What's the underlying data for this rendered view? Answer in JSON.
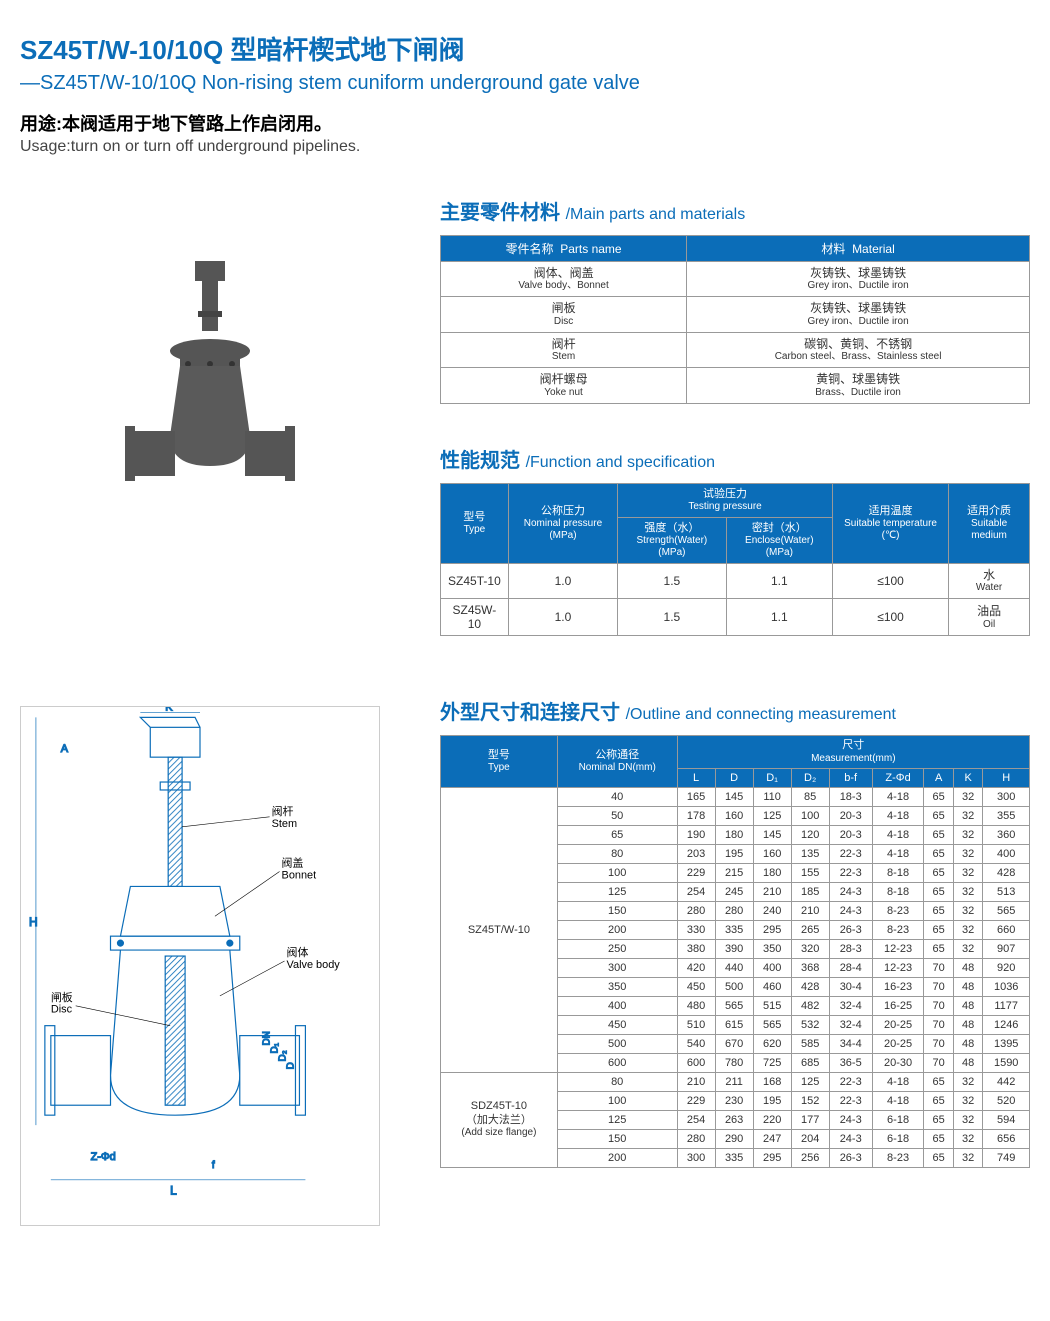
{
  "header": {
    "title_zh": "SZ45T/W-10/10Q 型暗杆楔式地下闸阀",
    "title_en": "—SZ45T/W-10/10Q Non-rising stem cuniform underground gate valve",
    "usage_zh": "用途:本阀适用于地下管路上作启闭用。",
    "usage_en": "Usage:turn on or turn off underground pipelines."
  },
  "colors": {
    "primary": "#0b6db8",
    "header_bg": "#0b6db8",
    "border": "#999999",
    "text": "#333333"
  },
  "parts": {
    "title_zh": "主要零件材料",
    "title_en": "/Main parts and materials",
    "col1_zh": "零件名称",
    "col1_en": "Parts name",
    "col2_zh": "材料",
    "col2_en": "Material",
    "rows": [
      {
        "part_zh": "阀体、阀盖",
        "part_en": "Valve body、Bonnet",
        "mat_zh": "灰铸铁、球墨铸铁",
        "mat_en": "Grey iron、Ductile iron"
      },
      {
        "part_zh": "闸板",
        "part_en": "Disc",
        "mat_zh": "灰铸铁、球墨铸铁",
        "mat_en": "Grey iron、Ductile iron"
      },
      {
        "part_zh": "阀杆",
        "part_en": "Stem",
        "mat_zh": "碳钢、黄铜、不锈钢",
        "mat_en": "Carbon steel、Brass、Stainless steel"
      },
      {
        "part_zh": "阀杆螺母",
        "part_en": "Yoke nut",
        "mat_zh": "黄铜、球墨铸铁",
        "mat_en": "Brass、Ductile iron"
      }
    ]
  },
  "spec": {
    "title_zh": "性能规范",
    "title_en": "/Function and specification",
    "h_type_zh": "型号",
    "h_type_en": "Type",
    "h_nom_zh": "公称压力",
    "h_nom_en": "Nominal pressure (MPa)",
    "h_test_zh": "试验压力",
    "h_test_en": "Testing pressure",
    "h_strength_zh": "强度（水）",
    "h_strength_en": "Strength(Water) (MPa)",
    "h_seal_zh": "密封（水）",
    "h_seal_en": "Enclose(Water) (MPa)",
    "h_temp_zh": "适用温度",
    "h_temp_en": "Suitable temperature (℃)",
    "h_medium_zh": "适用介质",
    "h_medium_en": "Suitable medium",
    "rows": [
      {
        "type": "SZ45T-10",
        "nom": "1.0",
        "strength": "1.5",
        "seal": "1.1",
        "temp": "≤100",
        "medium_zh": "水",
        "medium_en": "Water"
      },
      {
        "type": "SZ45W-10",
        "nom": "1.0",
        "strength": "1.5",
        "seal": "1.1",
        "temp": "≤100",
        "medium_zh": "油品",
        "medium_en": "Oil"
      }
    ]
  },
  "dims": {
    "title_zh": "外型尺寸和连接尺寸",
    "title_en": "/Outline and connecting measurement",
    "h_type_zh": "型号",
    "h_type_en": "Type",
    "h_dn_zh": "公称通径",
    "h_dn_en": "Nominal DN(mm)",
    "h_meas_zh": "尺寸",
    "h_meas_en": "Measurement(mm)",
    "cols": [
      "L",
      "D",
      "D₁",
      "D₂",
      "b-f",
      "Z-Φd",
      "A",
      "K",
      "H"
    ],
    "group1": {
      "type": "SZ45T/W-10",
      "rows": [
        [
          "40",
          "165",
          "145",
          "110",
          "85",
          "18-3",
          "4-18",
          "65",
          "32",
          "300"
        ],
        [
          "50",
          "178",
          "160",
          "125",
          "100",
          "20-3",
          "4-18",
          "65",
          "32",
          "355"
        ],
        [
          "65",
          "190",
          "180",
          "145",
          "120",
          "20-3",
          "4-18",
          "65",
          "32",
          "360"
        ],
        [
          "80",
          "203",
          "195",
          "160",
          "135",
          "22-3",
          "4-18",
          "65",
          "32",
          "400"
        ],
        [
          "100",
          "229",
          "215",
          "180",
          "155",
          "22-3",
          "8-18",
          "65",
          "32",
          "428"
        ],
        [
          "125",
          "254",
          "245",
          "210",
          "185",
          "24-3",
          "8-18",
          "65",
          "32",
          "513"
        ],
        [
          "150",
          "280",
          "280",
          "240",
          "210",
          "24-3",
          "8-23",
          "65",
          "32",
          "565"
        ],
        [
          "200",
          "330",
          "335",
          "295",
          "265",
          "26-3",
          "8-23",
          "65",
          "32",
          "660"
        ],
        [
          "250",
          "380",
          "390",
          "350",
          "320",
          "28-3",
          "12-23",
          "65",
          "32",
          "907"
        ],
        [
          "300",
          "420",
          "440",
          "400",
          "368",
          "28-4",
          "12-23",
          "70",
          "48",
          "920"
        ],
        [
          "350",
          "450",
          "500",
          "460",
          "428",
          "30-4",
          "16-23",
          "70",
          "48",
          "1036"
        ],
        [
          "400",
          "480",
          "565",
          "515",
          "482",
          "32-4",
          "16-25",
          "70",
          "48",
          "1177"
        ],
        [
          "450",
          "510",
          "615",
          "565",
          "532",
          "32-4",
          "20-25",
          "70",
          "48",
          "1246"
        ],
        [
          "500",
          "540",
          "670",
          "620",
          "585",
          "34-4",
          "20-25",
          "70",
          "48",
          "1395"
        ],
        [
          "600",
          "600",
          "780",
          "725",
          "685",
          "36-5",
          "20-30",
          "70",
          "48",
          "1590"
        ]
      ]
    },
    "group2": {
      "type_zh": "SDZ45T-10",
      "type_sub_zh": "（加大法兰）",
      "type_sub_en": "(Add size flange)",
      "rows": [
        [
          "80",
          "210",
          "211",
          "168",
          "125",
          "22-3",
          "4-18",
          "65",
          "32",
          "442"
        ],
        [
          "100",
          "229",
          "230",
          "195",
          "152",
          "22-3",
          "4-18",
          "65",
          "32",
          "520"
        ],
        [
          "125",
          "254",
          "263",
          "220",
          "177",
          "24-3",
          "6-18",
          "65",
          "32",
          "594"
        ],
        [
          "150",
          "280",
          "290",
          "247",
          "204",
          "24-3",
          "6-18",
          "65",
          "32",
          "656"
        ],
        [
          "200",
          "300",
          "335",
          "295",
          "256",
          "26-3",
          "8-23",
          "65",
          "32",
          "749"
        ]
      ]
    }
  },
  "diagram": {
    "labels": {
      "stem_zh": "阀杆",
      "stem_en": "Stem",
      "bonnet_zh": "阀盖",
      "bonnet_en": "Bonnet",
      "body_zh": "阀体",
      "body_en": "Valve body",
      "disc_zh": "闸板",
      "disc_en": "Disc"
    },
    "dims": [
      "K",
      "A",
      "H",
      "DN",
      "D₁",
      "D₂",
      "D",
      "Z-Φd",
      "f",
      "L"
    ]
  }
}
